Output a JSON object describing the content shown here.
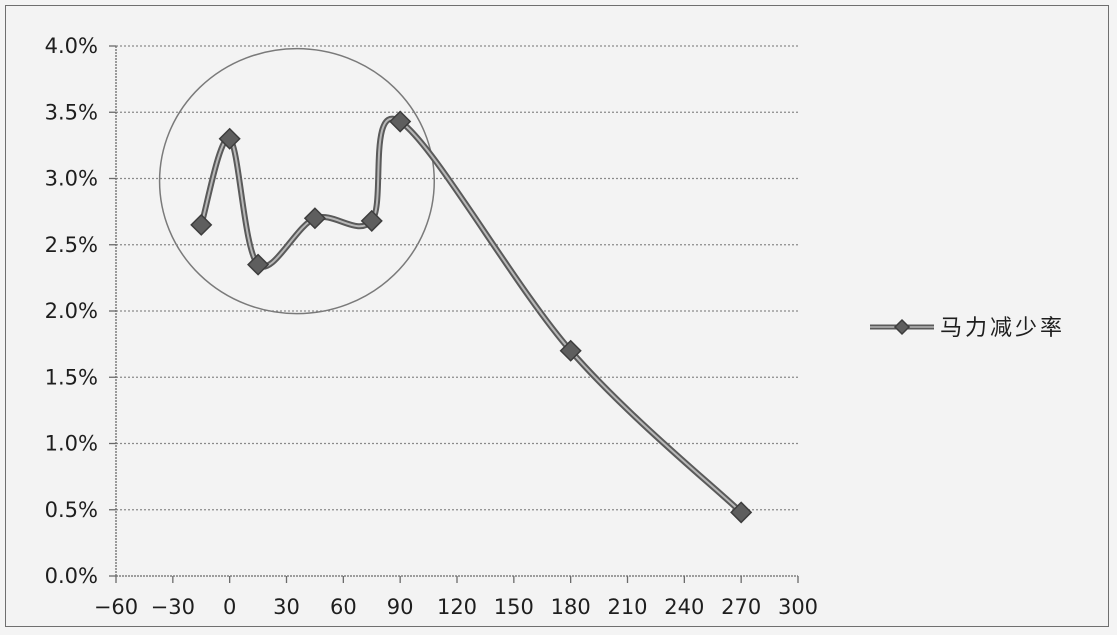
{
  "chart_data": {
    "type": "line",
    "title": "",
    "xlabel": "",
    "ylabel": "",
    "xlim": [
      -60,
      300
    ],
    "ylim": [
      0,
      4.0
    ],
    "x_ticks": [
      -60,
      -30,
      0,
      30,
      60,
      90,
      120,
      150,
      180,
      210,
      240,
      270,
      300
    ],
    "y_ticks": [
      "0.0%",
      "0.5%",
      "1.0%",
      "1.5%",
      "2.0%",
      "2.5%",
      "3.0%",
      "3.5%",
      "4.0%"
    ],
    "grid": "horizontal dotted",
    "legend_position": "right",
    "series": [
      {
        "name": "马力减少率",
        "color": "#707070",
        "marker": "diamond",
        "x": [
          -15,
          0,
          15,
          45,
          75,
          90,
          180,
          270
        ],
        "y": [
          2.65,
          3.3,
          2.35,
          2.7,
          2.68,
          3.43,
          1.7,
          0.48
        ]
      }
    ],
    "annotations": [
      {
        "type": "ellipse",
        "description": "highlight region",
        "x_range": [
          -37,
          108
        ],
        "y_range": [
          1.98,
          3.98
        ]
      }
    ]
  }
}
